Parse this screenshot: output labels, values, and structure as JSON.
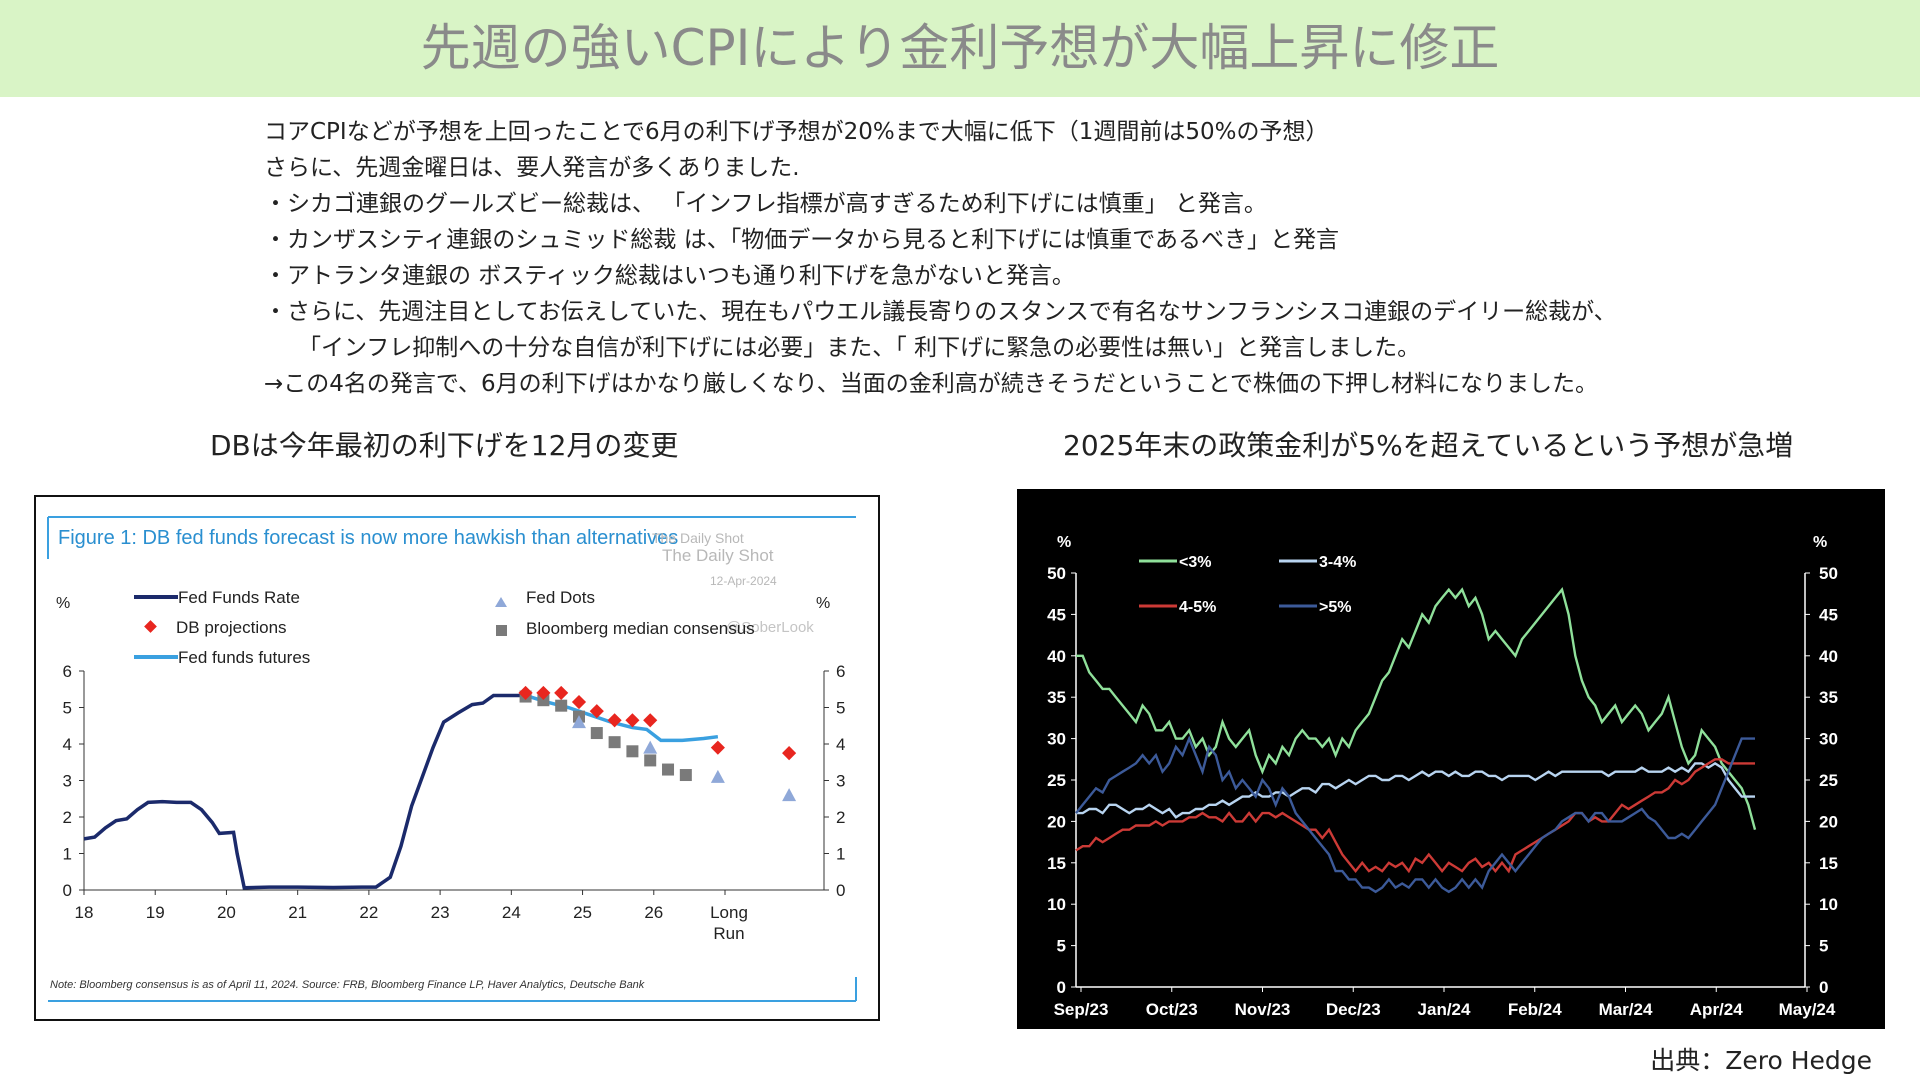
{
  "title": "先週の強いCPIにより金利予想が大幅上昇に修正",
  "body_lines": [
    "コアCPIなどが予想を上回ったことで6月の利下げ予想が20%まで大幅に低下（1週間前は50%の予想）",
    "さらに、先週金曜日は、要人発言が多くありました.",
    "・シカゴ連銀のグールズビー総裁は、 「インフレ指標が高すぎるため利下げには慎重」 と発言。",
    "・カンザスシティ連銀のシュミッド総裁 は、「物価データから見ると利下げには慎重であるべき」と発言",
    "・アトランタ連銀の ボスティック総裁はいつも通り利下げを急がないと発言。",
    "・さらに、先週注目としてお伝えしていた、現在もパウエル議長寄りのスタンスで有名なサンフランシスコ連銀のデイリー総裁が、",
    "「インフレ抑制への十分な自信が利下げには必要」また、「 利下げに緊急の必要性は無い」と発言しました。",
    "→この4名の発言で、6月の利下げはかなり厳しくなり、当面の金利高が続きそうだということで株価の下押し材料になりました。"
  ],
  "left_subtitle": "DBは今年最初の利下げを12月の変更",
  "right_subtitle": "2025年末の政策金利が5%を超えているという予想が急増",
  "source_label": "出典：Zero Hedge",
  "colors": {
    "title_bg": "#d9f4c6",
    "title_text": "#8a8a8a",
    "fed_funds": "#1b2a6b",
    "futures": "#3aa0e0",
    "db": "#e8261f",
    "dots": "#8fa8d8",
    "bbg": "#7a7a7a",
    "lt3": "#8fe09a",
    "b34": "#b8d4f0",
    "b45": "#cc3a36",
    "gt5": "#3c5a99"
  },
  "chart_data": [
    {
      "type": "line",
      "title": "Figure 1: DB fed funds forecast is now more hawkish than alternatives",
      "watermark": [
        "The Daily Shot",
        "12-Apr-2024",
        "@SoberLook"
      ],
      "ylabel_left": "%",
      "ylabel_right": "%",
      "ylim": [
        0,
        6
      ],
      "yticks": [
        "0",
        "1",
        "2",
        "3",
        "4",
        "5",
        "6"
      ],
      "xticks": [
        "18",
        "19",
        "20",
        "21",
        "22",
        "23",
        "24",
        "25",
        "26",
        "Long\nRun"
      ],
      "note": "Note: Bloomberg consensus is as of April 11, 2024. Source: FRB, Bloomberg Finance LP, Haver Analytics, Deutsche Bank",
      "legend": [
        "Fed Funds Rate",
        "DB projections",
        "Fed funds futures",
        "Fed Dots",
        "Bloomberg median consensus"
      ],
      "series": [
        {
          "name": "Fed Funds Rate",
          "type": "line",
          "points": [
            [
              18,
              1.4
            ],
            [
              18.15,
              1.45
            ],
            [
              18.3,
              1.7
            ],
            [
              18.45,
              1.9
            ],
            [
              18.6,
              1.95
            ],
            [
              18.75,
              2.2
            ],
            [
              18.9,
              2.4
            ],
            [
              19.1,
              2.42
            ],
            [
              19.3,
              2.4
            ],
            [
              19.5,
              2.4
            ],
            [
              19.65,
              2.2
            ],
            [
              19.8,
              1.85
            ],
            [
              19.9,
              1.55
            ],
            [
              20.1,
              1.58
            ],
            [
              20.15,
              1.0
            ],
            [
              20.25,
              0.06
            ],
            [
              20.6,
              0.08
            ],
            [
              21,
              0.08
            ],
            [
              21.5,
              0.07
            ],
            [
              21.9,
              0.08
            ],
            [
              22.1,
              0.08
            ],
            [
              22.3,
              0.35
            ],
            [
              22.45,
              1.2
            ],
            [
              22.6,
              2.3
            ],
            [
              22.75,
              3.1
            ],
            [
              22.9,
              3.9
            ],
            [
              23.05,
              4.6
            ],
            [
              23.25,
              4.85
            ],
            [
              23.45,
              5.08
            ],
            [
              23.6,
              5.12
            ],
            [
              23.75,
              5.33
            ],
            [
              24.25,
              5.33
            ]
          ]
        },
        {
          "name": "Fed funds futures",
          "type": "line",
          "points": [
            [
              24.2,
              5.33
            ],
            [
              24.5,
              5.15
            ],
            [
              24.8,
              5.0
            ],
            [
              25.1,
              4.8
            ],
            [
              25.4,
              4.6
            ],
            [
              25.7,
              4.45
            ],
            [
              25.9,
              4.4
            ],
            [
              26.1,
              4.1
            ],
            [
              26.4,
              4.1
            ],
            [
              26.7,
              4.15
            ],
            [
              26.9,
              4.2
            ]
          ]
        },
        {
          "name": "DB projections",
          "type": "marker",
          "points": [
            [
              24.2,
              5.4
            ],
            [
              24.45,
              5.4
            ],
            [
              24.7,
              5.4
            ],
            [
              24.95,
              5.15
            ],
            [
              25.2,
              4.9
            ],
            [
              25.45,
              4.65
            ],
            [
              25.7,
              4.65
            ],
            [
              25.95,
              4.65
            ],
            [
              26.9,
              3.9
            ],
            [
              27.9,
              3.75
            ]
          ]
        },
        {
          "name": "Bloomberg median consensus",
          "type": "marker",
          "points": [
            [
              24.2,
              5.3
            ],
            [
              24.45,
              5.2
            ],
            [
              24.7,
              5.05
            ],
            [
              24.95,
              4.75
            ],
            [
              25.2,
              4.3
            ],
            [
              25.45,
              4.05
            ],
            [
              25.7,
              3.8
            ],
            [
              25.95,
              3.55
            ],
            [
              26.2,
              3.3
            ],
            [
              26.45,
              3.15
            ]
          ]
        },
        {
          "name": "Fed Dots",
          "type": "marker",
          "points": [
            [
              24.95,
              4.6
            ],
            [
              25.95,
              3.9
            ],
            [
              26.9,
              3.1
            ],
            [
              27.9,
              2.6
            ]
          ]
        }
      ]
    },
    {
      "type": "line",
      "ylabel_left": "%",
      "ylabel_right": "%",
      "ylim": [
        0,
        50
      ],
      "yticks": [
        "0",
        "5",
        "10",
        "15",
        "20",
        "25",
        "30",
        "35",
        "40",
        "45",
        "50"
      ],
      "xticks": [
        "Sep/23",
        "Oct/23",
        "Nov/23",
        "Dec/23",
        "Jan/24",
        "Feb/24",
        "Mar/24",
        "Apr/24",
        "May/24"
      ],
      "legend": [
        "<3%",
        "3-4%",
        "4-5%",
        ">5%"
      ],
      "series": [
        {
          "name": "<3%",
          "values": [
            40,
            40,
            38,
            37,
            36,
            36,
            35,
            34,
            33,
            32,
            34,
            33,
            31,
            31,
            32,
            30,
            30,
            31,
            29,
            30,
            28,
            29,
            32,
            30,
            29,
            30,
            31,
            28,
            26,
            28,
            27,
            29,
            28,
            30,
            31,
            30,
            30,
            29,
            30,
            28,
            30,
            29,
            31,
            32,
            33,
            35,
            37,
            38,
            40,
            42,
            41,
            43,
            45,
            44,
            46,
            47,
            48,
            47,
            48,
            46,
            47,
            45,
            42,
            43,
            42,
            41,
            40,
            42,
            43,
            44,
            45,
            46,
            47,
            48,
            45,
            40,
            37,
            35,
            34,
            32,
            33,
            34,
            32,
            33,
            34,
            33,
            31,
            32,
            33,
            35,
            32,
            29,
            27,
            28,
            31,
            30,
            29,
            27,
            26,
            25,
            24,
            22,
            19
          ]
        },
        {
          "name": "3-4%",
          "values": [
            21,
            21,
            21.5,
            21.5,
            21,
            22,
            22,
            21.5,
            21,
            21.5,
            21.5,
            22,
            21.5,
            21,
            21.5,
            20.5,
            21,
            21,
            21.5,
            21.5,
            22,
            22,
            22.5,
            22,
            22.5,
            23,
            23,
            23.5,
            23,
            23,
            23.5,
            23.5,
            23,
            23.5,
            24,
            24,
            23.5,
            24.5,
            24.5,
            24,
            24.5,
            25,
            24.5,
            25,
            25.5,
            25.5,
            25,
            25,
            25.5,
            25.5,
            25,
            25.5,
            26,
            25.5,
            26,
            26,
            25.5,
            26,
            25.5,
            25.5,
            26,
            26,
            25.5,
            25.5,
            25,
            25.5,
            25.5,
            25.5,
            25.5,
            25,
            25.5,
            26,
            25.5,
            26,
            26,
            26,
            26,
            26,
            26,
            26,
            25.5,
            26,
            26,
            26,
            26,
            26.5,
            26,
            26,
            26,
            26.5,
            26,
            26.5,
            26,
            27,
            27,
            26.5,
            27,
            26.5,
            25,
            24,
            23,
            23,
            23
          ]
        },
        {
          "name": "4-5%",
          "values": [
            16.5,
            17,
            17,
            18,
            17.5,
            18,
            18.5,
            19,
            19,
            19.5,
            19.5,
            19.5,
            20,
            19.5,
            20,
            20,
            20,
            20.5,
            20.5,
            21,
            20.5,
            20.5,
            20,
            21,
            20,
            20,
            21,
            20,
            21,
            21,
            20.5,
            21,
            20.5,
            20,
            19.5,
            19,
            19,
            18,
            19,
            17.5,
            16,
            15,
            14,
            15,
            14,
            14.5,
            14,
            15,
            14.5,
            15,
            14,
            15.5,
            15,
            16,
            15,
            14,
            15,
            14.5,
            14,
            15,
            15.5,
            14.5,
            15,
            14,
            15,
            14,
            16,
            16.5,
            17,
            17.5,
            18,
            18.5,
            19,
            19.5,
            20,
            21,
            21,
            20,
            20.5,
            20,
            20,
            21,
            22,
            21.5,
            22,
            22.5,
            23,
            23.5,
            23.5,
            24,
            25,
            24.5,
            25,
            26,
            26.5,
            27,
            27.5,
            27.5,
            27,
            27,
            27,
            27,
            27
          ]
        },
        {
          "name": ">5%",
          "values": [
            21,
            22,
            23,
            24,
            23.5,
            25,
            25.5,
            26,
            26.5,
            27,
            28,
            27,
            28,
            26,
            27,
            29,
            28,
            30,
            28,
            26,
            29,
            28,
            25,
            26,
            24,
            25,
            24,
            23,
            25,
            24,
            22,
            24,
            23,
            21,
            20,
            19,
            18,
            17,
            16,
            14,
            14,
            13,
            13,
            12,
            12,
            11.5,
            12,
            13,
            12,
            12.5,
            12,
            13,
            13,
            12,
            13,
            12,
            11.5,
            12,
            13,
            12,
            13,
            12,
            14,
            15,
            16,
            15,
            14,
            15,
            16,
            17,
            18,
            18.5,
            19,
            20,
            20.5,
            21,
            21,
            20,
            21,
            21,
            20,
            20,
            20,
            20.5,
            21,
            21.5,
            20.5,
            20,
            19,
            18,
            18,
            18.5,
            18,
            19,
            20,
            21,
            22,
            24,
            26,
            28,
            30,
            30,
            30
          ]
        }
      ]
    }
  ]
}
